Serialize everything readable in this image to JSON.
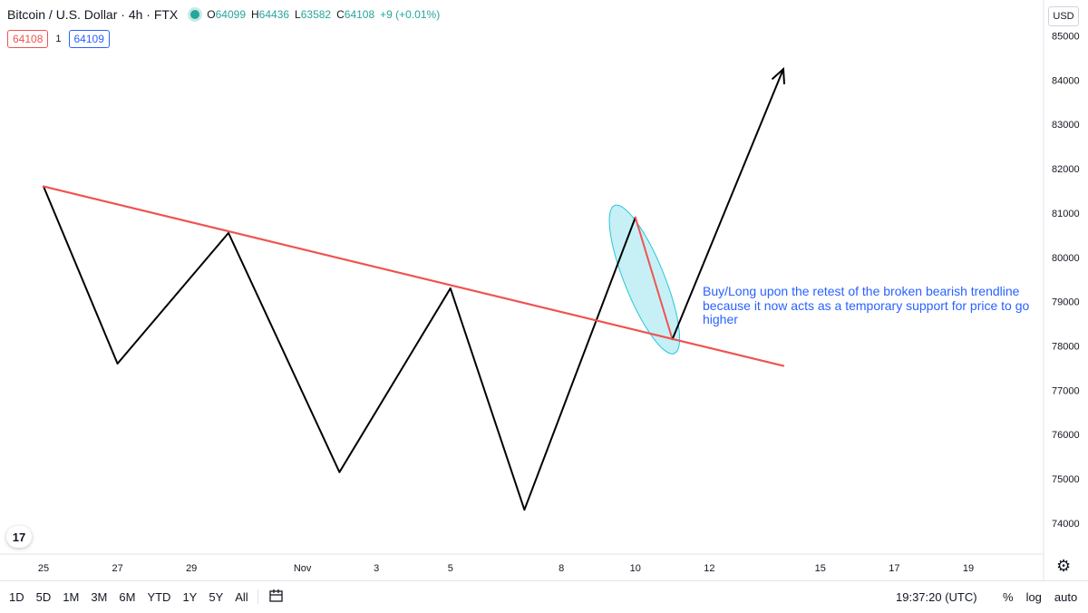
{
  "header": {
    "symbol": "Bitcoin / U.S. Dollar · 4h · FTX",
    "ohlc": {
      "o_label": "O",
      "o": "64099",
      "h_label": "H",
      "h": "64436",
      "l_label": "L",
      "l": "63582",
      "c_label": "C",
      "c": "64108",
      "change": "+9 (+0.01%)"
    },
    "sell_price": "64108",
    "spread": "1",
    "buy_price": "64109",
    "currency": "USD",
    "status_color": "#26a69a"
  },
  "chart_data": {
    "type": "line",
    "y_ticks": [
      "85000",
      "84000",
      "83000",
      "82000",
      "81000",
      "80000",
      "79000",
      "78000",
      "77000",
      "76000",
      "75000",
      "74000"
    ],
    "x_ticks": [
      "25",
      "27",
      "29",
      "Nov",
      "3",
      "5",
      "8",
      "10",
      "12",
      "15",
      "17",
      "19"
    ],
    "ylim": [
      73500,
      85300
    ],
    "series": [
      {
        "color": "#000000",
        "points": [
          {
            "x": "Oct 25",
            "y": 81600
          },
          {
            "x": "Oct 27",
            "y": 77600
          },
          {
            "x": "Oct 30",
            "y": 80550
          },
          {
            "x": "Nov 2",
            "y": 75150
          },
          {
            "x": "Nov 5",
            "y": 79300
          },
          {
            "x": "Nov 7",
            "y": 74300
          },
          {
            "x": "Nov 10",
            "y": 80900
          }
        ]
      },
      {
        "color": "#ef5350",
        "points": [
          {
            "x": "Nov 10",
            "y": 80900
          },
          {
            "x": "Nov 11",
            "y": 78150
          }
        ]
      },
      {
        "color": "#000000",
        "points": [
          {
            "x": "Nov 11",
            "y": 78150
          },
          {
            "x": "Nov 14",
            "y": 84250
          }
        ],
        "arrow": true
      },
      {
        "color": "#ef5350",
        "points": [
          {
            "x": "Oct 25",
            "y": 81600
          },
          {
            "x": "Nov 14",
            "y": 77550
          }
        ],
        "role": "trendline"
      }
    ],
    "highlight": {
      "color": "#80deea",
      "center": {
        "x": "Nov 10",
        "y": 79500
      }
    },
    "annotation": "Buy/Long upon the retest of the broken bearish trendline because it now acts as a temporary support for price to go higher",
    "grid": false
  },
  "bottom_bar": {
    "ranges": [
      "1D",
      "5D",
      "1M",
      "3M",
      "6M",
      "YTD",
      "1Y",
      "5Y",
      "All"
    ],
    "clock": "19:37:20 (UTC)",
    "percent": "%",
    "log": "log",
    "auto": "auto"
  },
  "logo_text": "17"
}
